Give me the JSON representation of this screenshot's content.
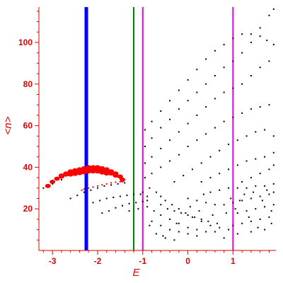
{
  "chart_data": {
    "type": "scatter",
    "title": "",
    "xlabel": "E",
    "ylabel": "<n>",
    "xlim": [
      -3.3,
      1.95
    ],
    "ylim": [
      0,
      117
    ],
    "xticks": [
      -3,
      -2,
      -1,
      0,
      1
    ],
    "yticks": [
      20,
      40,
      60,
      80,
      100
    ],
    "grid": false,
    "colors": {
      "axes": "#e00000",
      "red_points": "#ff0000",
      "black_points": "#000000",
      "line_blue": "#0000ff",
      "line_green": "#008000",
      "line_magenta": "#e000e0"
    },
    "vertical_lines": [
      {
        "x": -2.25,
        "color": "#0000ff",
        "width": "thick"
      },
      {
        "x": -1.2,
        "color": "#008000",
        "width": "normal"
      },
      {
        "x": -1.0,
        "color": "#e000e0",
        "width": "normal"
      },
      {
        "x": 1.0,
        "color": "#e000e0",
        "width": "normal"
      }
    ],
    "series": [
      {
        "color": "#ff0000",
        "size": "large",
        "points": [
          [
            -3.1,
            31
          ],
          [
            -3.0,
            33
          ],
          [
            -2.9,
            34.5
          ],
          [
            -2.8,
            36
          ],
          [
            -2.7,
            37
          ],
          [
            -2.6,
            38
          ],
          [
            -2.5,
            38.5
          ],
          [
            -2.4,
            39
          ],
          [
            -2.3,
            39.5
          ],
          [
            -2.2,
            40
          ],
          [
            -2.1,
            40
          ],
          [
            -2.0,
            40
          ],
          [
            -1.9,
            39.5
          ],
          [
            -1.8,
            39
          ],
          [
            -1.7,
            38
          ],
          [
            -1.6,
            37
          ],
          [
            -1.5,
            35.5
          ],
          [
            -1.45,
            34
          ],
          [
            -2.8,
            35.5
          ],
          [
            -2.7,
            36.5
          ],
          [
            -2.6,
            37.5
          ],
          [
            -2.5,
            37.5
          ],
          [
            -2.4,
            38
          ],
          [
            -2.3,
            38.5
          ],
          [
            -2.2,
            39
          ],
          [
            -2.1,
            39
          ],
          [
            -2.0,
            39
          ],
          [
            -1.9,
            38.5
          ],
          [
            -1.8,
            38
          ],
          [
            -1.7,
            37
          ],
          [
            -1.6,
            36
          ],
          [
            -2.6,
            36.5
          ],
          [
            -2.5,
            36.8
          ],
          [
            -2.4,
            37.2
          ],
          [
            -2.3,
            37.6
          ],
          [
            -2.2,
            38
          ],
          [
            -2.1,
            38
          ],
          [
            -2.0,
            38
          ],
          [
            -1.9,
            37.5
          ],
          [
            -1.8,
            37
          ]
        ]
      },
      {
        "color": "#ff0000",
        "size": "small",
        "points": [
          [
            -2.35,
            29
          ],
          [
            -2.3,
            29.5
          ],
          [
            -2.2,
            30
          ],
          [
            -2.1,
            30.5
          ],
          [
            -2.0,
            31
          ],
          [
            -1.9,
            31.5
          ],
          [
            -1.8,
            32
          ],
          [
            -1.7,
            32.5
          ],
          [
            -1.6,
            32.8
          ],
          [
            -1.5,
            33
          ],
          [
            -1.45,
            33
          ]
        ]
      },
      {
        "color": "#000000",
        "size": "small",
        "points": [
          [
            -3.2,
            30
          ],
          [
            -3.0,
            32
          ],
          [
            -2.8,
            34
          ],
          [
            -2.6,
            25
          ],
          [
            -2.45,
            26.5
          ],
          [
            -2.3,
            28
          ],
          [
            -2.15,
            29
          ],
          [
            -2.0,
            30
          ],
          [
            -1.85,
            31
          ],
          [
            -1.7,
            31.5
          ],
          [
            -1.55,
            32
          ],
          [
            -1.4,
            32.5
          ],
          [
            -2.1,
            23
          ],
          [
            -1.95,
            24
          ],
          [
            -1.8,
            25
          ],
          [
            -1.65,
            25.5
          ],
          [
            -1.5,
            26
          ],
          [
            -1.35,
            26.5
          ],
          [
            -1.2,
            27
          ],
          [
            -1.05,
            27
          ],
          [
            -0.9,
            26
          ],
          [
            -1.9,
            18
          ],
          [
            -1.75,
            19
          ],
          [
            -1.6,
            20.5
          ],
          [
            -1.45,
            21.5
          ],
          [
            -1.3,
            22.5
          ],
          [
            -1.15,
            23
          ],
          [
            -1.0,
            23.5
          ],
          [
            -0.9,
            24
          ],
          [
            -1.3,
            19
          ],
          [
            -1.1,
            20
          ],
          [
            -0.95,
            58
          ],
          [
            -0.8,
            62
          ],
          [
            -0.6,
            67
          ],
          [
            -0.4,
            72
          ],
          [
            -0.2,
            77
          ],
          [
            0.0,
            82
          ],
          [
            0.2,
            87
          ],
          [
            0.4,
            92
          ],
          [
            0.6,
            96
          ],
          [
            0.8,
            99
          ],
          [
            1.0,
            102
          ],
          [
            1.2,
            104
          ],
          [
            1.4,
            104
          ],
          [
            1.6,
            103
          ],
          [
            1.75,
            101
          ],
          [
            1.9,
            99
          ],
          [
            -0.95,
            50
          ],
          [
            -0.8,
            54
          ],
          [
            -0.6,
            59
          ],
          [
            -0.4,
            63
          ],
          [
            -0.2,
            68
          ],
          [
            0.0,
            72
          ],
          [
            0.2,
            76
          ],
          [
            0.4,
            80
          ],
          [
            0.6,
            84
          ],
          [
            0.8,
            88
          ],
          [
            1.0,
            91
          ],
          [
            1.2,
            95
          ],
          [
            1.4,
            100
          ],
          [
            1.6,
            107
          ],
          [
            1.8,
            113
          ],
          [
            1.9,
            116
          ],
          [
            -0.95,
            42
          ],
          [
            -0.8,
            45
          ],
          [
            -0.6,
            49
          ],
          [
            -0.4,
            53
          ],
          [
            -0.2,
            57
          ],
          [
            0.0,
            61
          ],
          [
            0.2,
            65
          ],
          [
            0.4,
            69
          ],
          [
            0.6,
            73
          ],
          [
            0.8,
            76
          ],
          [
            1.0,
            78
          ],
          [
            1.2,
            80
          ],
          [
            1.4,
            84
          ],
          [
            1.6,
            88
          ],
          [
            1.8,
            91
          ],
          [
            -0.95,
            35
          ],
          [
            -0.8,
            37
          ],
          [
            -0.6,
            40
          ],
          [
            -0.4,
            43
          ],
          [
            -0.2,
            46
          ],
          [
            0.0,
            50
          ],
          [
            0.2,
            53
          ],
          [
            0.4,
            56
          ],
          [
            0.6,
            59
          ],
          [
            0.8,
            62
          ],
          [
            1.0,
            64
          ],
          [
            1.2,
            66
          ],
          [
            1.4,
            68
          ],
          [
            1.6,
            69
          ],
          [
            1.8,
            70
          ],
          [
            -0.3,
            33
          ],
          [
            -0.1,
            36
          ],
          [
            0.1,
            39
          ],
          [
            0.3,
            42
          ],
          [
            0.5,
            45
          ],
          [
            0.7,
            48
          ],
          [
            0.9,
            51
          ],
          [
            1.1,
            53
          ],
          [
            1.3,
            55
          ],
          [
            1.5,
            57
          ],
          [
            1.7,
            58
          ],
          [
            1.9,
            55
          ],
          [
            0.3,
            33
          ],
          [
            0.5,
            35
          ],
          [
            0.7,
            37
          ],
          [
            0.9,
            39
          ],
          [
            1.1,
            41
          ],
          [
            1.3,
            43
          ],
          [
            1.5,
            44
          ],
          [
            1.7,
            45
          ],
          [
            1.9,
            47
          ],
          [
            1.2,
            33
          ],
          [
            1.4,
            35
          ],
          [
            1.6,
            37
          ],
          [
            1.8,
            39
          ],
          [
            1.9,
            41
          ],
          [
            -1.0,
            28
          ],
          [
            -0.85,
            30
          ],
          [
            -0.7,
            28
          ],
          [
            -0.6,
            26
          ],
          [
            -0.5,
            24
          ],
          [
            -0.35,
            22
          ],
          [
            -0.2,
            20
          ],
          [
            -0.05,
            18
          ],
          [
            0.1,
            16
          ],
          [
            0.3,
            14
          ],
          [
            0.5,
            12
          ],
          [
            0.7,
            11
          ],
          [
            0.9,
            10
          ],
          [
            -0.9,
            21
          ],
          [
            -0.75,
            19
          ],
          [
            -0.6,
            17
          ],
          [
            -0.4,
            15
          ],
          [
            -0.2,
            13
          ],
          [
            0.0,
            11
          ],
          [
            0.2,
            10
          ],
          [
            0.4,
            9
          ],
          [
            0.6,
            9
          ],
          [
            -0.8,
            14
          ],
          [
            -0.6,
            12
          ],
          [
            -0.4,
            10
          ],
          [
            -0.2,
            9
          ],
          [
            0.0,
            8
          ],
          [
            0.2,
            7
          ],
          [
            -0.7,
            8
          ],
          [
            -0.5,
            6
          ],
          [
            -0.3,
            5
          ],
          [
            -0.6,
            22
          ],
          [
            -0.45,
            20
          ],
          [
            -0.3,
            19
          ],
          [
            -0.15,
            18
          ],
          [
            0.0,
            17
          ],
          [
            0.15,
            16
          ],
          [
            0.3,
            15
          ],
          [
            0.45,
            14
          ],
          [
            0.0,
            25
          ],
          [
            0.2,
            24
          ],
          [
            0.4,
            23
          ],
          [
            0.6,
            22
          ],
          [
            0.8,
            22
          ],
          [
            1.0,
            23
          ],
          [
            1.2,
            24
          ],
          [
            1.4,
            25
          ],
          [
            1.6,
            26
          ],
          [
            1.8,
            27
          ],
          [
            1.9,
            28
          ],
          [
            0.5,
            28
          ],
          [
            0.7,
            29
          ],
          [
            0.9,
            30
          ],
          [
            1.1,
            30
          ],
          [
            1.3,
            30
          ],
          [
            1.5,
            31
          ],
          [
            1.7,
            31
          ],
          [
            1.9,
            32
          ],
          [
            1.1,
            18
          ],
          [
            1.3,
            19
          ],
          [
            1.5,
            20
          ],
          [
            1.7,
            21
          ],
          [
            1.9,
            22
          ],
          [
            1.0,
            12
          ],
          [
            1.2,
            13
          ],
          [
            1.4,
            14
          ],
          [
            1.6,
            15
          ],
          [
            1.8,
            16
          ],
          [
            0.8,
            6
          ],
          [
            1.1,
            8
          ],
          [
            1.4,
            9
          ],
          [
            1.7,
            10
          ],
          [
            -0.85,
            12
          ],
          [
            -0.55,
            7
          ],
          [
            -0.25,
            13
          ],
          [
            0.05,
            21
          ],
          [
            0.25,
            19
          ],
          [
            0.35,
            27
          ],
          [
            0.55,
            17
          ],
          [
            0.65,
            13
          ],
          [
            0.85,
            18
          ],
          [
            0.95,
            25
          ],
          [
            1.05,
            20
          ],
          [
            1.25,
            27
          ],
          [
            1.35,
            16
          ],
          [
            1.55,
            11
          ],
          [
            1.65,
            24
          ],
          [
            1.85,
            19
          ],
          [
            1.85,
            13
          ],
          [
            1.75,
            29
          ],
          [
            1.45,
            28
          ],
          [
            1.15,
            24
          ]
        ]
      }
    ]
  }
}
